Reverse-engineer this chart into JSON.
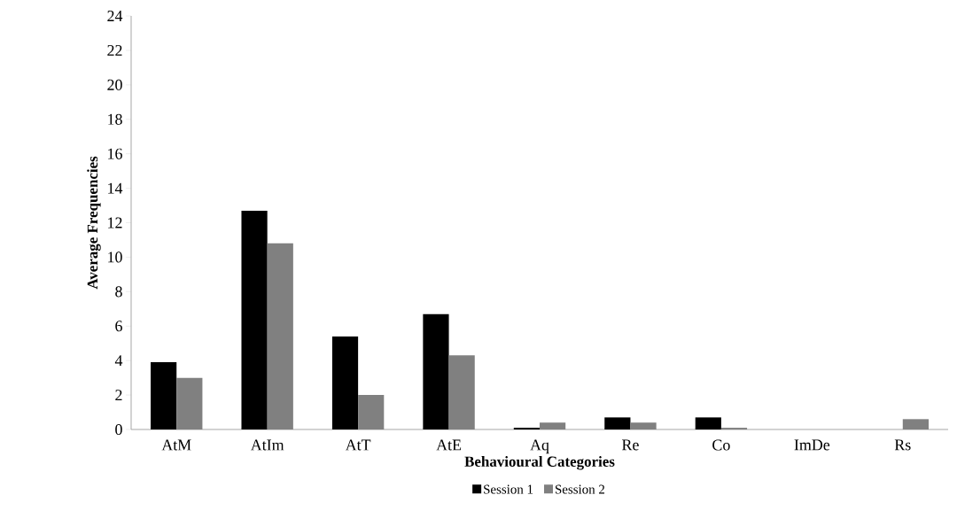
{
  "chart_data": {
    "type": "bar",
    "xlabel": "Behavioural Categories",
    "ylabel": "Average Frequencies",
    "categories": [
      "AtM",
      "AtIm",
      "AtT",
      "AtE",
      "Aq",
      "Re",
      "Co",
      "ImDe",
      "Rs"
    ],
    "series": [
      {
        "name": "Session 1",
        "color": "#000000",
        "values": [
          3.9,
          12.7,
          5.4,
          6.7,
          0.1,
          0.7,
          0.7,
          0,
          0
        ]
      },
      {
        "name": "Session 2",
        "color": "#808080",
        "values": [
          3.0,
          10.8,
          2.0,
          4.3,
          0.4,
          0.4,
          0.1,
          0,
          0.6
        ]
      }
    ],
    "ylim": [
      0,
      24
    ],
    "yticks": [
      0,
      2,
      4,
      6,
      8,
      10,
      12,
      14,
      16,
      18,
      20,
      22,
      24
    ],
    "grid": false,
    "legend": "bottom"
  }
}
